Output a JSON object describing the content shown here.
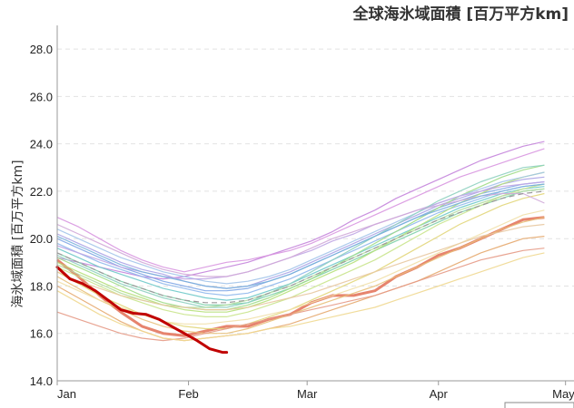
{
  "chart_data": {
    "type": "line",
    "title": "全球海氷域面積 [百万平方km]",
    "xlabel": "",
    "ylabel": "海氷域面積 [百万平方km]",
    "ylim": [
      14.0,
      29.0
    ],
    "yticks": [
      "14.0",
      "16.0",
      "18.0",
      "20.0",
      "22.0",
      "24.0",
      "26.0",
      "28.0"
    ],
    "xticks": [
      {
        "label": "Jan",
        "day": 1
      },
      {
        "label": "Feb",
        "day": 32
      },
      {
        "label": "Mar",
        "day": 60
      },
      {
        "label": "Apr",
        "day": 91
      },
      {
        "label": "May",
        "day": 121
      }
    ],
    "xlim": [
      1,
      123
    ],
    "grid": true,
    "legend": "none",
    "highlight_series": {
      "color": "#c00000",
      "x": [
        1,
        4,
        7,
        10,
        13,
        16,
        19,
        22,
        25,
        28,
        31,
        34,
        37,
        40,
        41
      ],
      "y": [
        18.8,
        18.3,
        18.1,
        17.8,
        17.4,
        17.0,
        16.85,
        16.8,
        16.6,
        16.3,
        16.0,
        15.7,
        15.35,
        15.2,
        15.2
      ]
    },
    "past_years": [
      {
        "color": "#e6846e",
        "width": 3,
        "y": [
          19.1,
          18.4,
          17.6,
          16.9,
          16.3,
          16.0,
          15.9,
          16.1,
          16.3,
          16.3,
          16.6,
          16.8,
          17.3,
          17.6,
          17.6,
          17.8,
          18.4,
          18.8,
          19.3,
          19.6,
          20.0,
          20.4,
          20.8,
          20.9
        ]
      },
      {
        "color": "#c484dc",
        "width": 1.2,
        "y": [
          19.2,
          19.0,
          18.8,
          18.6,
          18.4,
          18.3,
          18.4,
          18.6,
          18.8,
          19.0,
          19.3,
          19.6,
          19.9,
          20.3,
          20.8,
          21.2,
          21.7,
          22.1,
          22.5,
          22.9,
          23.3,
          23.6,
          23.9,
          24.1
        ]
      },
      {
        "color": "#d896e0",
        "width": 1.2,
        "y": [
          20.9,
          20.5,
          20.0,
          19.5,
          19.1,
          18.8,
          18.6,
          18.8,
          19.0,
          19.1,
          19.3,
          19.5,
          19.8,
          20.2,
          20.6,
          21.0,
          21.4,
          21.8,
          22.2,
          22.6,
          22.9,
          23.2,
          23.5,
          23.8
        ]
      },
      {
        "color": "#a9a2e6",
        "width": 1.2,
        "y": [
          20.2,
          19.8,
          19.4,
          19.0,
          18.7,
          18.5,
          18.2,
          18.0,
          17.9,
          18.0,
          18.3,
          18.6,
          19.0,
          19.4,
          19.8,
          20.2,
          20.6,
          21.0,
          21.4,
          21.7,
          22.0,
          22.3,
          22.5,
          22.6
        ]
      },
      {
        "color": "#7fa6e6",
        "width": 1.2,
        "y": [
          20.0,
          19.6,
          19.2,
          18.8,
          18.5,
          18.2,
          18.0,
          17.8,
          17.8,
          17.9,
          18.2,
          18.5,
          18.9,
          19.3,
          19.7,
          20.1,
          20.5,
          20.9,
          21.3,
          21.6,
          21.9,
          22.1,
          22.3,
          22.4
        ]
      },
      {
        "color": "#8fb8ec",
        "width": 1.2,
        "y": [
          19.8,
          19.4,
          19.0,
          18.7,
          18.4,
          18.1,
          17.9,
          17.7,
          17.6,
          17.7,
          18.0,
          18.3,
          18.7,
          19.1,
          19.5,
          19.9,
          20.3,
          20.7,
          21.1,
          21.4,
          21.7,
          22.0,
          22.2,
          22.3
        ]
      },
      {
        "color": "#6ec9c9",
        "width": 1.2,
        "y": [
          19.6,
          19.2,
          18.8,
          18.5,
          18.2,
          17.9,
          17.7,
          17.5,
          17.4,
          17.5,
          17.8,
          18.1,
          18.5,
          18.9,
          19.3,
          19.7,
          20.1,
          20.5,
          20.9,
          21.3,
          21.6,
          21.9,
          22.1,
          22.2
        ]
      },
      {
        "color": "#7ccfa8",
        "width": 1.2,
        "y": [
          19.4,
          19.0,
          18.6,
          18.2,
          17.9,
          17.6,
          17.4,
          17.2,
          17.2,
          17.3,
          17.6,
          17.9,
          18.3,
          18.7,
          19.1,
          19.5,
          19.9,
          20.3,
          20.7,
          21.1,
          21.4,
          21.7,
          22.0,
          22.1
        ]
      },
      {
        "color": "#9edb86",
        "width": 1.2,
        "y": [
          19.2,
          18.8,
          18.4,
          18.0,
          17.6,
          17.3,
          17.1,
          17.0,
          17.0,
          17.2,
          17.5,
          17.9,
          18.3,
          18.8,
          19.3,
          19.8,
          20.3,
          20.8,
          21.3,
          21.8,
          22.2,
          22.6,
          22.9,
          23.1
        ]
      },
      {
        "color": "#b6e07a",
        "width": 1.2,
        "y": [
          19.0,
          18.6,
          18.2,
          17.8,
          17.5,
          17.2,
          17.0,
          16.9,
          16.9,
          17.1,
          17.4,
          17.8,
          18.2,
          18.6,
          19.0,
          19.5,
          20.0,
          20.5,
          21.0,
          21.5,
          21.9,
          22.3,
          22.6,
          22.8
        ]
      },
      {
        "color": "#c9e48c",
        "width": 1.2,
        "y": [
          18.8,
          18.4,
          18.0,
          17.6,
          17.3,
          17.0,
          16.8,
          16.7,
          16.7,
          16.9,
          17.2,
          17.5,
          17.9,
          18.3,
          18.7,
          19.1,
          19.6,
          20.1,
          20.6,
          21.0,
          21.4,
          21.8,
          22.1,
          22.3
        ]
      },
      {
        "color": "#e2d67a",
        "width": 1.2,
        "y": [
          18.6,
          18.1,
          17.6,
          17.2,
          16.8,
          16.5,
          16.3,
          16.2,
          16.2,
          16.4,
          16.7,
          17.0,
          17.4,
          17.8,
          18.2,
          18.6,
          19.1,
          19.6,
          20.1,
          20.6,
          21.0,
          21.4,
          21.7,
          21.9
        ]
      },
      {
        "color": "#e8c07a",
        "width": 1.2,
        "y": [
          18.4,
          17.9,
          17.4,
          17.0,
          16.6,
          16.3,
          16.1,
          16.0,
          16.0,
          16.2,
          16.5,
          16.8,
          17.1,
          17.4,
          17.7,
          18.0,
          18.4,
          18.8,
          19.2,
          19.6,
          20.0,
          20.4,
          20.7,
          20.9
        ]
      },
      {
        "color": "#e6a86e",
        "width": 1.2,
        "y": [
          18.0,
          17.5,
          17.0,
          16.5,
          16.1,
          15.8,
          15.7,
          15.8,
          15.9,
          16.0,
          16.2,
          16.4,
          16.7,
          17.0,
          17.3,
          17.6,
          17.9,
          18.2,
          18.6,
          19.0,
          19.4,
          19.7,
          20.0,
          20.1
        ]
      },
      {
        "color": "#e59a86",
        "width": 1.2,
        "y": [
          16.9,
          16.6,
          16.3,
          16.0,
          15.8,
          15.7,
          15.8,
          16.0,
          16.2,
          16.4,
          16.6,
          16.8,
          17.0,
          17.2,
          17.4,
          17.6,
          17.9,
          18.2,
          18.5,
          18.8,
          19.1,
          19.3,
          19.5,
          19.6
        ]
      },
      {
        "color": "#f0d890",
        "width": 1.2,
        "y": [
          17.8,
          17.3,
          16.8,
          16.4,
          16.1,
          15.8,
          15.7,
          15.8,
          15.9,
          16.0,
          16.2,
          16.3,
          16.5,
          16.7,
          16.9,
          17.1,
          17.4,
          17.7,
          18.0,
          18.3,
          18.6,
          18.9,
          19.2,
          19.4
        ]
      },
      {
        "color": "#f1e0a8",
        "width": 1.2,
        "y": [
          18.2,
          17.8,
          17.4,
          17.1,
          16.8,
          16.5,
          16.4,
          16.4,
          16.5,
          16.6,
          16.8,
          17.0,
          17.3,
          17.6,
          17.9,
          18.2,
          18.6,
          19.0,
          19.4,
          19.8,
          20.2,
          20.6,
          21.0,
          21.2
        ]
      },
      {
        "color": "#a3c4ea",
        "width": 1.2,
        "y": [
          20.4,
          20.0,
          19.6,
          19.2,
          18.9,
          18.6,
          18.4,
          18.2,
          18.1,
          18.2,
          18.4,
          18.7,
          19.1,
          19.5,
          19.9,
          20.3,
          20.7,
          21.1,
          21.5,
          21.8,
          22.1,
          22.4,
          22.6,
          22.8
        ]
      },
      {
        "color": "#c0a6e4",
        "width": 1.2,
        "y": [
          19.7,
          19.4,
          19.1,
          18.8,
          18.6,
          18.4,
          18.3,
          18.3,
          18.4,
          18.6,
          18.9,
          19.2,
          19.5,
          19.9,
          20.2,
          20.6,
          20.9,
          21.2,
          21.5,
          21.8,
          22.0,
          22.2,
          22.3,
          22.4
        ]
      },
      {
        "color": "#8ed0c0",
        "width": 1.2,
        "y": [
          19.3,
          18.9,
          18.5,
          18.1,
          17.8,
          17.5,
          17.3,
          17.1,
          17.1,
          17.3,
          17.7,
          18.1,
          18.6,
          19.1,
          19.6,
          20.1,
          20.6,
          21.1,
          21.6,
          22.0,
          22.4,
          22.7,
          23.0,
          23.1
        ]
      },
      {
        "color": "#b2dca0",
        "width": 1.2,
        "y": [
          18.9,
          18.5,
          18.1,
          17.7,
          17.4,
          17.2,
          17.1,
          17.1,
          17.2,
          17.4,
          17.7,
          18.0,
          18.4,
          18.8,
          19.2,
          19.6,
          20.0,
          20.4,
          20.8,
          21.2,
          21.5,
          21.8,
          22.0,
          22.1
        ]
      },
      {
        "color": "#d0a8d8",
        "width": 1.2,
        "y": [
          20.6,
          20.2,
          19.8,
          19.4,
          19.0,
          18.7,
          18.5,
          18.4,
          18.4,
          18.6,
          18.9,
          19.2,
          19.6,
          20.0,
          20.3,
          20.6,
          20.9,
          21.2,
          21.4,
          21.6,
          21.8,
          21.9,
          21.9,
          21.5
        ]
      },
      {
        "color": "#e8c8a0",
        "width": 1.2,
        "y": [
          18.6,
          18.2,
          17.9,
          17.6,
          17.4,
          17.2,
          17.1,
          17.0,
          17.0,
          17.1,
          17.3,
          17.5,
          17.7,
          18.0,
          18.3,
          18.6,
          18.9,
          19.2,
          19.5,
          19.8,
          20.1,
          20.3,
          20.5,
          20.6
        ]
      },
      {
        "color": "#78b0dc",
        "width": 1.2,
        "y": [
          20.1,
          19.7,
          19.3,
          18.9,
          18.6,
          18.4,
          18.2,
          18.0,
          17.9,
          18.0,
          18.2,
          18.5,
          18.9,
          19.3,
          19.7,
          20.1,
          20.5,
          20.9,
          21.2,
          21.5,
          21.8,
          22.0,
          22.2,
          22.3
        ]
      }
    ],
    "mean_series": {
      "color": "#9a9a9a",
      "dash": "6 4",
      "y": [
        19.4,
        19.0,
        18.6,
        18.2,
        17.9,
        17.6,
        17.4,
        17.3,
        17.3,
        17.4,
        17.7,
        18.0,
        18.4,
        18.8,
        19.2,
        19.6,
        20.0,
        20.4,
        20.8,
        21.1,
        21.4,
        21.7,
        21.9,
        22.0
      ]
    }
  }
}
